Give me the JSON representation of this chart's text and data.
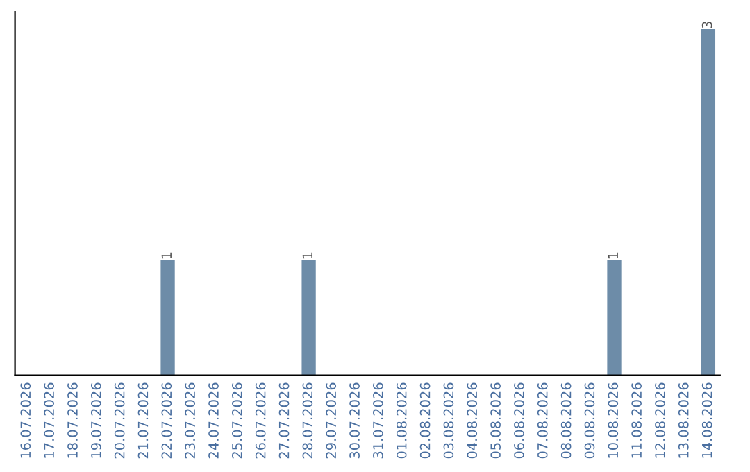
{
  "chart_data": {
    "type": "bar",
    "categories": [
      "16.07.2026",
      "17.07.2026",
      "18.07.2026",
      "19.07.2026",
      "20.07.2026",
      "21.07.2026",
      "22.07.2026",
      "23.07.2026",
      "24.07.2026",
      "25.07.2026",
      "26.07.2026",
      "27.07.2026",
      "28.07.2026",
      "29.07.2026",
      "30.07.2026",
      "31.07.2026",
      "01.08.2026",
      "02.08.2026",
      "03.08.2026",
      "04.08.2026",
      "05.08.2026",
      "06.08.2026",
      "07.08.2026",
      "08.08.2026",
      "09.08.2026",
      "10.08.2026",
      "11.08.2026",
      "12.08.2026",
      "13.08.2026",
      "14.08.2026"
    ],
    "values": [
      0,
      0,
      0,
      0,
      0,
      0,
      1,
      0,
      0,
      0,
      0,
      0,
      1,
      0,
      0,
      0,
      0,
      0,
      0,
      0,
      0,
      0,
      0,
      0,
      0,
      1,
      0,
      0,
      0,
      3
    ],
    "value_labels": [
      null,
      null,
      null,
      null,
      null,
      null,
      "1",
      null,
      null,
      null,
      null,
      null,
      "1",
      null,
      null,
      null,
      null,
      null,
      null,
      null,
      null,
      null,
      null,
      null,
      null,
      "1",
      null,
      null,
      null,
      "3"
    ],
    "color": "#6d8ca8",
    "tick_labels": "x",
    "grid": false,
    "legend": false
  }
}
